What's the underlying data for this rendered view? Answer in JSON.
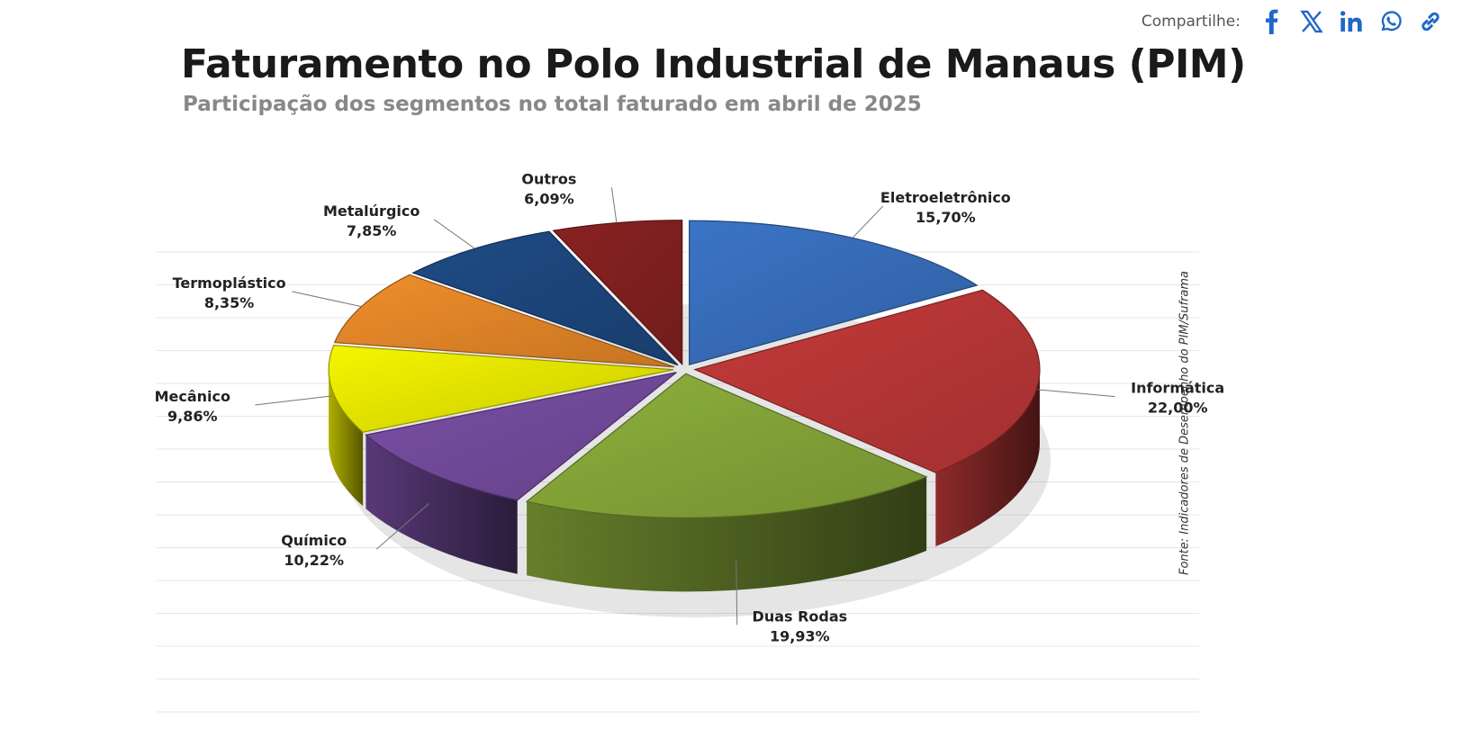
{
  "share": {
    "label": "Compartilhe:",
    "icons": [
      "facebook-icon",
      "x-icon",
      "linkedin-icon",
      "whatsapp-icon",
      "link-icon"
    ],
    "icon_color": "#1f67c9"
  },
  "chart_data": {
    "type": "pie",
    "title": "Faturamento no Polo Industrial de Manaus (PIM)",
    "subtitle": "Participação dos segmentos no total faturado em abril de 2025",
    "source": "Fonte: Indicadores de Desempenho do PIM/Suframa",
    "slices": [
      {
        "label": "Eletroeletrônico",
        "value": 15.7,
        "value_text": "15,70%",
        "color": "#3b74c6"
      },
      {
        "label": "Informática",
        "value": 22.0,
        "value_text": "22,00%",
        "color": "#c53a3a"
      },
      {
        "label": "Duas Rodas",
        "value": 19.93,
        "value_text": "19,93%",
        "color": "#8db03c"
      },
      {
        "label": "Químico",
        "value": 10.22,
        "value_text": "10,22%",
        "color": "#7a4fa6"
      },
      {
        "label": "Mecânico",
        "value": 9.86,
        "value_text": "9,86%",
        "color": "#f5f500"
      },
      {
        "label": "Termoplástico",
        "value": 8.35,
        "value_text": "8,35%",
        "color": "#f08e2b"
      },
      {
        "label": "Metalúrgico",
        "value": 7.85,
        "value_text": "7,85%",
        "color": "#1e4b85"
      },
      {
        "label": "Outros",
        "value": 6.09,
        "value_text": "6,09%",
        "color": "#8a2222"
      }
    ],
    "legend": "labels-around-pie",
    "grid": true
  }
}
